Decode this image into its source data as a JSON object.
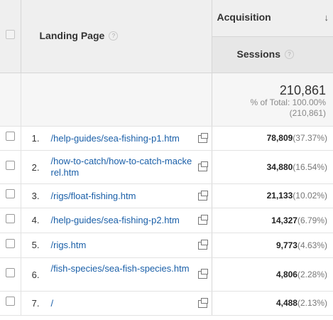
{
  "header": {
    "landing_page_label": "Landing Page",
    "acquisition_label": "Acquisition",
    "sessions_label": "Sessions",
    "help_glyph": "?",
    "sort_icon": "arrow-down-icon"
  },
  "totals": {
    "sessions": "210,861",
    "percent_line": "% of Total: 100.00%",
    "total_line": "(210,861)"
  },
  "rows": [
    {
      "index": "1.",
      "page": "/help-guides/sea-fishing-p1.htm",
      "sessions": "78,809",
      "percent": "(37.37%)"
    },
    {
      "index": "2.",
      "page": "/how-to-catch/how-to-catch-mackerel.htm",
      "sessions": "34,880",
      "percent": "(16.54%)"
    },
    {
      "index": "3.",
      "page": "/rigs/float-fishing.htm",
      "sessions": "21,133",
      "percent": "(10.02%)"
    },
    {
      "index": "4.",
      "page": "/help-guides/sea-fishing-p2.htm",
      "sessions": "14,327",
      "percent": "(6.79%)"
    },
    {
      "index": "5.",
      "page": "/rigs.htm",
      "sessions": "9,773",
      "percent": "(4.63%)"
    },
    {
      "index": "6.",
      "page": "/fish-species/sea-fish-species.htm",
      "sessions": "4,806",
      "percent": "(2.28%)"
    },
    {
      "index": "7.",
      "page": "/",
      "sessions": "4,488",
      "percent": "(2.13%)"
    }
  ]
}
